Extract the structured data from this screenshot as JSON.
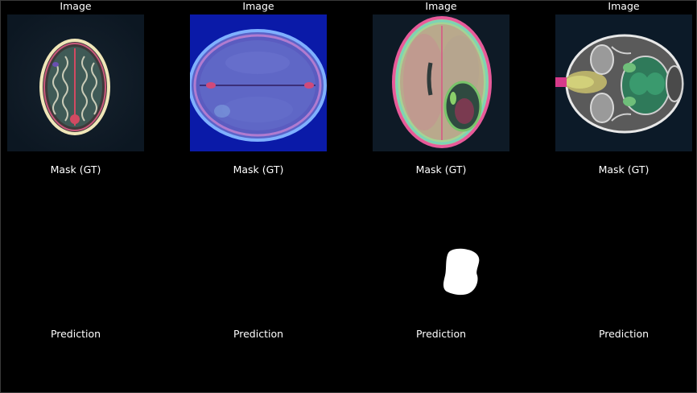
{
  "figure": {
    "columns": [
      {
        "image_title": "Image",
        "mask_title": "Mask (GT)",
        "prediction_title": "Prediction",
        "scan_description": "axial MRI slice, top of skull, small brain section",
        "mask_has_lesion": false
      },
      {
        "image_title": "Image",
        "mask_title": "Mask (GT)",
        "prediction_title": "Prediction",
        "scan_description": "axial MRI slice, blue background, large oval skull",
        "mask_has_lesion": false
      },
      {
        "image_title": "Image",
        "mask_title": "Mask (GT)",
        "prediction_title": "Prediction",
        "scan_description": "axial MRI slice with tumor in right hemisphere",
        "mask_has_lesion": true
      },
      {
        "image_title": "Image",
        "mask_title": "Mask (GT)",
        "prediction_title": "Prediction",
        "scan_description": "axial MRI slice at skull base with orbits",
        "mask_has_lesion": false
      }
    ],
    "colors": {
      "background": "#000000",
      "text": "#ffffff",
      "mask_foreground": "#ffffff"
    }
  }
}
